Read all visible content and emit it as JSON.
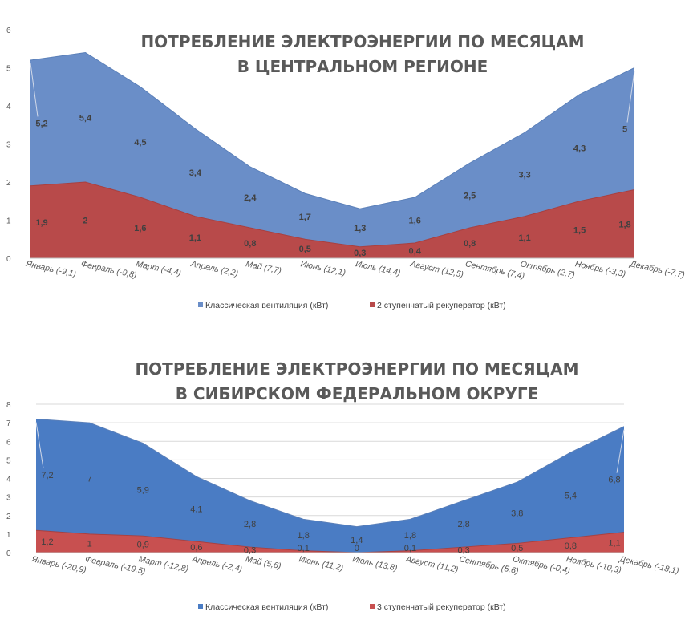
{
  "chart_data": [
    {
      "type": "area",
      "title": [
        "ПОТРЕБЛЕНИЕ ЭЛЕКТРОЭНЕРГИИ ПО МЕСЯЦАМ",
        "В ЦЕНТРАЛЬНОМ РЕГИОНЕ"
      ],
      "categories": [
        "Январь (-9,1)",
        "Февраль (-9,8)",
        "Март (-4,4)",
        "Апрель (2,2)",
        "Май (7,7)",
        "Июнь (12,1)",
        "Июль (14,4)",
        "Август (12,5)",
        "Сентябрь (7,4)",
        "Октябрь (2,7)",
        "Ноябрь (-3,3)",
        "Декабрь (-7,7)"
      ],
      "ylim": [
        0,
        6
      ],
      "yticks": [
        "0",
        "1",
        "2",
        "3",
        "4",
        "5",
        "6"
      ],
      "grid": false,
      "legend": "bottom",
      "series": [
        {
          "name": "Классическая вентиляция (кВт)",
          "values": [
            5.2,
            5.4,
            4.5,
            3.4,
            2.4,
            1.7,
            1.3,
            1.6,
            2.5,
            3.3,
            4.3,
            5.0
          ],
          "labels": [
            "5,2",
            "5,4",
            "4,5",
            "3,4",
            "2,4",
            "1,7",
            "1,3",
            "1,6",
            "2,5",
            "3,3",
            "4,3",
            "5"
          ],
          "color": "#6a8ec8"
        },
        {
          "name": "2 ступенчатый рекуператор (кВт)",
          "values": [
            1.9,
            2.0,
            1.6,
            1.1,
            0.8,
            0.5,
            0.3,
            0.4,
            0.8,
            1.1,
            1.5,
            1.8
          ],
          "labels": [
            "1,9",
            "2",
            "1,6",
            "1,1",
            "0,8",
            "0,5",
            "0,3",
            "0,4",
            "0,8",
            "1,1",
            "1,5",
            "1,8"
          ],
          "color": "#b84a4a"
        }
      ]
    },
    {
      "type": "area",
      "title": [
        "ПОТРЕБЛЕНИЕ ЭЛЕКТРОЭНЕРГИИ ПО МЕСЯЦАМ",
        "В СИБИРСКОМ ФЕДЕРАЛЬНОМ ОКРУГЕ"
      ],
      "categories": [
        "Январь (-20,9)",
        "Февраль (-19,5)",
        "Март (-12,8)",
        "Апрель (-2,4)",
        "Май (5,6)",
        "Июнь (11,2)",
        "Июль (13,8)",
        "Август (11,2)",
        "Сентябрь (5,6)",
        "Октябрь (-0,4)",
        "Ноябрь (-10,3)",
        "Декабрь (-18,1)"
      ],
      "ylim": [
        0,
        8
      ],
      "yticks": [
        "0",
        "1",
        "2",
        "3",
        "4",
        "5",
        "6",
        "7",
        "8"
      ],
      "grid": true,
      "legend": "bottom",
      "series": [
        {
          "name": "Классическая вентиляция (кВт)",
          "values": [
            7.2,
            7.0,
            5.9,
            4.1,
            2.8,
            1.8,
            1.4,
            1.8,
            2.8,
            3.8,
            5.4,
            6.8
          ],
          "labels": [
            "7,2",
            "7",
            "5,9",
            "4,1",
            "2,8",
            "1,8",
            "1,4",
            "1,8",
            "2,8",
            "3,8",
            "5,4",
            "6,8"
          ],
          "color": "#4a7cc4"
        },
        {
          "name": "3 ступенчатый рекуператор (кВт)",
          "values": [
            1.2,
            1.0,
            0.9,
            0.6,
            0.3,
            0.1,
            0.0,
            0.1,
            0.3,
            0.5,
            0.8,
            1.1
          ],
          "labels": [
            "1,2",
            "1",
            "0,9",
            "0,6",
            "0,3",
            "0,1",
            "0",
            "0,1",
            "0,3",
            "0,5",
            "0,8",
            "1,1"
          ],
          "color": "#c85050"
        }
      ]
    }
  ]
}
